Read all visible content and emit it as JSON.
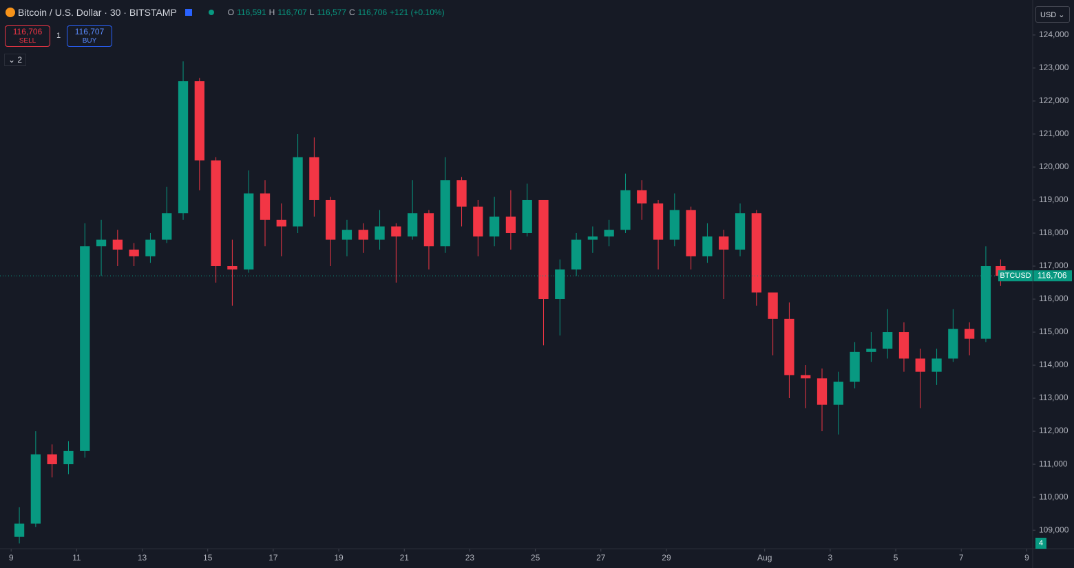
{
  "header": {
    "symbol": "Bitcoin / U.S. Dollar · 30 · BITSTAMP",
    "o_label": "O",
    "o": "116,591",
    "h_label": "H",
    "h": "116,707",
    "l_label": "L",
    "l": "116,577",
    "c_label": "C",
    "c": "116,706",
    "change": "+121 (+0.10%)",
    "sell_price": "116,706",
    "sell": "SELL",
    "qty": "1",
    "buy_price": "116,707",
    "buy": "BUY",
    "indicators": "2",
    "currency": "USD",
    "badge": "4"
  },
  "chart_data": {
    "type": "candlestick",
    "up_color": "#089981",
    "down_color": "#f23645",
    "x": [
      0.25,
      0.75,
      1.25,
      1.75,
      2.25,
      2.75,
      3.25,
      3.75,
      4.25,
      4.75,
      5.25,
      5.75,
      6.25,
      6.75,
      7.25,
      7.75,
      8.25,
      8.75,
      9.25,
      9.75,
      10.25,
      10.75,
      11.25,
      11.75,
      12.25,
      12.75,
      13.25,
      13.75,
      14.25,
      14.75,
      15.25,
      15.75,
      16.25,
      16.75,
      17.25,
      17.75,
      18.25,
      18.75,
      19.25,
      19.75,
      20.25,
      20.75,
      21.25,
      21.75,
      22.25,
      22.75,
      23.25,
      23.75,
      24.25,
      24.75,
      25.25,
      25.75,
      26.25,
      26.75,
      27.25,
      27.75,
      28.25,
      28.75,
      29.25,
      29.75,
      30.2
    ],
    "open": [
      108800,
      109200,
      111300,
      111000,
      111400,
      117600,
      117800,
      117500,
      117300,
      117800,
      118600,
      122600,
      120200,
      117000,
      116900,
      119200,
      118400,
      118200,
      120300,
      119000,
      117800,
      118100,
      117800,
      118200,
      117900,
      118600,
      117600,
      119600,
      118800,
      117900,
      118500,
      118000,
      119000,
      116000,
      116900,
      117800,
      117900,
      118100,
      119300,
      118900,
      117800,
      118700,
      117300,
      117900,
      117500,
      118600,
      116200,
      115400,
      113700,
      113600,
      112800,
      113500,
      114400,
      114500,
      115000,
      114200,
      113800,
      114200,
      115100,
      114800,
      117000
    ],
    "high": [
      109700,
      112000,
      111600,
      111700,
      118300,
      118400,
      118100,
      117700,
      118000,
      119400,
      123200,
      122700,
      120300,
      117800,
      119900,
      119600,
      118900,
      121000,
      120900,
      119100,
      118400,
      118300,
      118700,
      118300,
      119600,
      118700,
      120300,
      119700,
      119000,
      119100,
      119300,
      119500,
      119000,
      117200,
      118000,
      118200,
      118400,
      119800,
      119600,
      119000,
      119200,
      118800,
      118300,
      118100,
      118900,
      118700,
      116100,
      115900,
      114000,
      113900,
      113800,
      114700,
      115000,
      115700,
      115300,
      114500,
      114500,
      115700,
      115300,
      117600,
      117200
    ],
    "low": [
      108600,
      109100,
      110600,
      110700,
      111200,
      116700,
      117000,
      117000,
      117100,
      117700,
      118400,
      119300,
      116500,
      115800,
      116800,
      117600,
      117300,
      118000,
      118500,
      117000,
      117300,
      117400,
      117500,
      116500,
      117800,
      116900,
      117400,
      118200,
      117300,
      117600,
      117500,
      117900,
      114600,
      114900,
      116700,
      117400,
      117600,
      118000,
      118400,
      116900,
      117600,
      116900,
      117100,
      116000,
      117300,
      115800,
      114300,
      113000,
      112700,
      112000,
      111900,
      113300,
      114100,
      114200,
      113800,
      112700,
      113400,
      114100,
      114300,
      114700,
      116400
    ],
    "close": [
      109200,
      111300,
      111000,
      111400,
      117600,
      117800,
      117500,
      117300,
      117800,
      118600,
      122600,
      120200,
      117000,
      116900,
      119200,
      118400,
      118200,
      120300,
      119000,
      117800,
      118100,
      117800,
      118200,
      117900,
      118600,
      117600,
      119600,
      118800,
      117900,
      118500,
      118000,
      119000,
      116000,
      116900,
      117800,
      117900,
      118100,
      119300,
      118900,
      117800,
      118700,
      117300,
      117900,
      117500,
      118600,
      116200,
      115400,
      113700,
      113600,
      112800,
      113500,
      114400,
      114500,
      115000,
      114200,
      113800,
      114200,
      115100,
      114800,
      117000,
      116706
    ],
    "xlim": [
      -0.34,
      31.18
    ],
    "ylim": [
      108440,
      125060
    ],
    "yticks": [
      {
        "value": 109000,
        "label": "109,000"
      },
      {
        "value": 110000,
        "label": "110,000"
      },
      {
        "value": 111000,
        "label": "111,000"
      },
      {
        "value": 112000,
        "label": "112,000"
      },
      {
        "value": 113000,
        "label": "113,000"
      },
      {
        "value": 114000,
        "label": "114,000"
      },
      {
        "value": 115000,
        "label": "115,000"
      },
      {
        "value": 116000,
        "label": "116,000"
      },
      {
        "value": 117000,
        "label": "117,000"
      },
      {
        "value": 118000,
        "label": "118,000"
      },
      {
        "value": 119000,
        "label": "119,000"
      },
      {
        "value": 120000,
        "label": "120,000"
      },
      {
        "value": 121000,
        "label": "121,000"
      },
      {
        "value": 122000,
        "label": "122,000"
      },
      {
        "value": 123000,
        "label": "123,000"
      },
      {
        "value": 124000,
        "label": "124,000"
      }
    ],
    "xticks": [
      {
        "value": 0,
        "label": "9"
      },
      {
        "value": 2,
        "label": "11"
      },
      {
        "value": 4,
        "label": "13"
      },
      {
        "value": 6,
        "label": "15"
      },
      {
        "value": 8,
        "label": "17"
      },
      {
        "value": 10,
        "label": "19"
      },
      {
        "value": 12,
        "label": "21"
      },
      {
        "value": 14,
        "label": "23"
      },
      {
        "value": 16,
        "label": "25"
      },
      {
        "value": 18,
        "label": "27"
      },
      {
        "value": 20,
        "label": "29"
      },
      {
        "value": 23,
        "label": "Aug"
      },
      {
        "value": 25,
        "label": "3"
      },
      {
        "value": 27,
        "label": "5"
      },
      {
        "value": 29,
        "label": "7"
      },
      {
        "value": 31,
        "label": "9"
      }
    ],
    "last_price": {
      "value": 116706,
      "label": "116,706",
      "symbol": "BTCUSD"
    }
  }
}
